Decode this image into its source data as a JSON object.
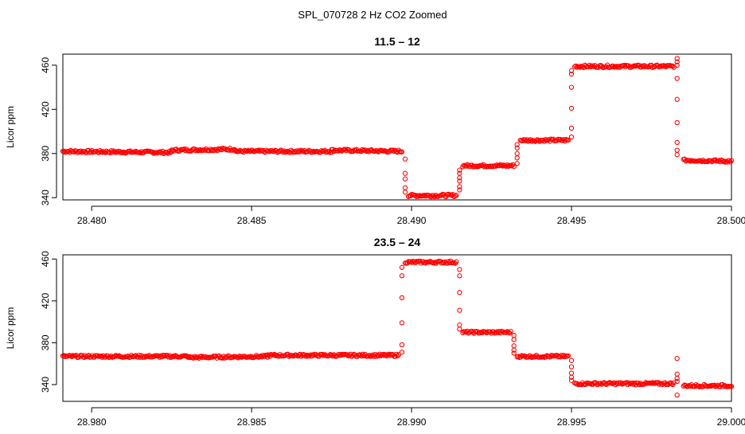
{
  "figure": {
    "title": "SPL_070728  2 Hz CO2 Zoomed"
  },
  "chart_data": [
    {
      "type": "scatter",
      "title": "11.5 – 12",
      "xlabel": "",
      "ylabel": "Licor ppm",
      "xlim": [
        28.4791,
        28.5
      ],
      "ylim": [
        338,
        470
      ],
      "xticks": [
        28.48,
        28.485,
        28.49,
        28.495,
        28.5
      ],
      "xtick_labels": [
        "28.480",
        "28.485",
        "28.490",
        "28.495",
        "28.500"
      ],
      "yticks": [
        340,
        380,
        420,
        460
      ],
      "ytick_labels": [
        "340",
        "380",
        "420",
        "460"
      ],
      "grid": false,
      "marker": "open-circle",
      "color": "#ff0000",
      "segments": [
        {
          "x": [
            28.4791,
            28.4825
          ],
          "y": [
            382,
            381
          ]
        },
        {
          "x": [
            28.4825,
            28.4845
          ],
          "y": [
            383,
            384
          ]
        },
        {
          "x": [
            28.4845,
            28.4875
          ],
          "y": [
            382,
            382
          ]
        },
        {
          "x": [
            28.4875,
            28.4897
          ],
          "y": [
            383,
            382
          ]
        },
        {
          "x": [
            28.4899,
            28.4914
          ],
          "y": [
            342,
            342
          ]
        },
        {
          "x": [
            28.4916,
            28.4932
          ],
          "y": [
            369,
            369
          ]
        },
        {
          "x": [
            28.4934,
            28.4949
          ],
          "y": [
            392,
            392
          ]
        },
        {
          "x": [
            28.4951,
            28.4982
          ],
          "y": [
            459,
            459
          ]
        },
        {
          "x": [
            28.4985,
            28.5
          ],
          "y": [
            374,
            373
          ]
        }
      ],
      "transitions": [
        {
          "x": 28.4898,
          "y": [
            375,
            362,
            357,
            349,
            345
          ]
        },
        {
          "x": 28.4915,
          "y": [
            347,
            350,
            355,
            358,
            362,
            365
          ]
        },
        {
          "x": 28.4933,
          "y": [
            371,
            376,
            380,
            385,
            388
          ]
        },
        {
          "x": 28.495,
          "y": [
            395,
            403,
            421,
            440,
            452,
            455
          ]
        },
        {
          "x": 28.4983,
          "y": [
            466,
            463,
            460,
            448,
            429,
            408,
            390,
            383,
            379
          ]
        }
      ]
    },
    {
      "type": "scatter",
      "title": "23.5 – 24",
      "xlabel": "",
      "ylabel": "Licor ppm",
      "xlim": [
        28.9791,
        29.0
      ],
      "ylim": [
        324,
        464
      ],
      "xticks": [
        28.98,
        28.985,
        28.99,
        28.995,
        29.0
      ],
      "xtick_labels": [
        "28.980",
        "28.985",
        "28.990",
        "28.995",
        "29.000"
      ],
      "yticks": [
        340,
        380,
        420,
        460
      ],
      "ytick_labels": [
        "340",
        "380",
        "420",
        "460"
      ],
      "grid": false,
      "marker": "open-circle",
      "color": "#ff0000",
      "segments": [
        {
          "x": [
            28.9791,
            28.983
          ],
          "y": [
            367,
            367
          ]
        },
        {
          "x": [
            28.983,
            28.9855
          ],
          "y": [
            366,
            367
          ]
        },
        {
          "x": [
            28.9855,
            28.9896
          ],
          "y": [
            368,
            368
          ]
        },
        {
          "x": [
            28.9898,
            28.9914
          ],
          "y": [
            457,
            457
          ]
        },
        {
          "x": [
            28.9916,
            28.9931
          ],
          "y": [
            390,
            390
          ]
        },
        {
          "x": [
            28.9933,
            28.9949
          ],
          "y": [
            367,
            367
          ]
        },
        {
          "x": [
            28.9951,
            28.9982
          ],
          "y": [
            341,
            341
          ]
        },
        {
          "x": [
            28.9985,
            29.0
          ],
          "y": [
            339,
            339
          ]
        }
      ],
      "transitions": [
        {
          "x": 28.9897,
          "y": [
            371,
            378,
            399,
            423,
            444,
            452
          ]
        },
        {
          "x": 28.9915,
          "y": [
            450,
            444,
            428,
            411,
            397,
            393
          ]
        },
        {
          "x": 28.9932,
          "y": [
            387,
            383,
            377,
            373,
            370
          ]
        },
        {
          "x": 28.995,
          "y": [
            363,
            357,
            351,
            347,
            344
          ]
        },
        {
          "x": 28.9983,
          "y": [
            365,
            350,
            346,
            343,
            330
          ]
        }
      ]
    }
  ]
}
